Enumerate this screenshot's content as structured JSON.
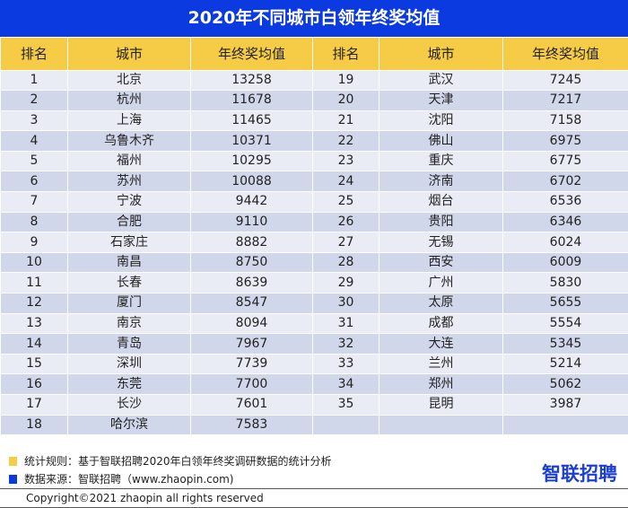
{
  "title": "2020年不同城市白领年终奖均值",
  "headers": [
    "排名",
    "城市",
    "年终奖均值",
    "排名",
    "城市",
    "年终奖均值"
  ],
  "rows": [
    [
      "1",
      "北京",
      "13258",
      "19",
      "武汉",
      "7245"
    ],
    [
      "2",
      "杭州",
      "11678",
      "20",
      "天津",
      "7217"
    ],
    [
      "3",
      "上海",
      "11465",
      "21",
      "沈阳",
      "7158"
    ],
    [
      "4",
      "乌鲁木齐",
      "10371",
      "22",
      "佛山",
      "6975"
    ],
    [
      "5",
      "福州",
      "10295",
      "23",
      "重庆",
      "6775"
    ],
    [
      "6",
      "苏州",
      "10088",
      "24",
      "济南",
      "6702"
    ],
    [
      "7",
      "宁波",
      "9442",
      "25",
      "烟台",
      "6536"
    ],
    [
      "8",
      "合肥",
      "9110",
      "26",
      "贵阳",
      "6346"
    ],
    [
      "9",
      "石家庄",
      "8882",
      "27",
      "无锡",
      "6024"
    ],
    [
      "10",
      "南昌",
      "8750",
      "28",
      "西安",
      "6009"
    ],
    [
      "11",
      "长春",
      "8639",
      "29",
      "广州",
      "5830"
    ],
    [
      "12",
      "厦门",
      "8547",
      "30",
      "太原",
      "5655"
    ],
    [
      "13",
      "南京",
      "8094",
      "31",
      "成都",
      "5554"
    ],
    [
      "14",
      "青岛",
      "7967",
      "32",
      "大连",
      "5345"
    ],
    [
      "15",
      "深圳",
      "7739",
      "33",
      "兰州",
      "5214"
    ],
    [
      "16",
      "东莞",
      "7700",
      "34",
      "郑州",
      "5062"
    ],
    [
      "17",
      "长沙",
      "7601",
      "35",
      "昆明",
      "3987"
    ],
    [
      "18",
      "哈尔滨",
      "7583",
      "",
      "",
      ""
    ]
  ],
  "footer": {
    "rule": "统计规则：基于智联招聘2020年白领年终奖调研数据的统计分析",
    "source": "数据来源：智联招聘（www.zhaopin.com)",
    "logo": "智联招聘",
    "copyright": "Copyright©2021 zhaopin all rights reserved"
  },
  "colors": {
    "title_bg": "#0b3be0",
    "header_bg": "#f6cb45",
    "row_light": "#e9ecf4",
    "row_dark": "#d1d7ea",
    "rule_marker": "#f6cb45",
    "source_marker": "#0b3be0"
  }
}
